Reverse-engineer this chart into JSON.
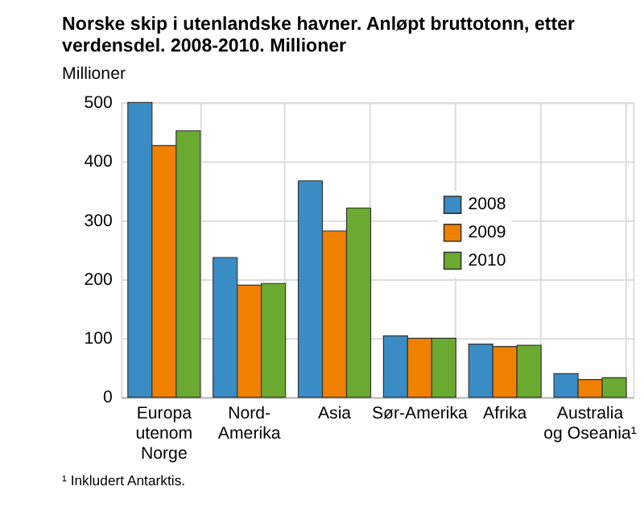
{
  "chart_data": {
    "type": "bar",
    "title": "Norske skip i utenlandske havner. Anløpt bruttotonn, etter verdensdel. 2008-2010. Millioner",
    "ylabel": "Millioner",
    "categories": [
      "Europa utenom Norge",
      "Nord-Amerika",
      "Asia",
      "Sør-Amerika",
      "Afrika",
      "Australia og Oseania¹"
    ],
    "series": [
      {
        "name": "2008",
        "color": "#3a8cc4",
        "values": [
          500,
          237,
          367,
          104,
          90,
          40
        ]
      },
      {
        "name": "2009",
        "color": "#f08000",
        "values": [
          427,
          190,
          282,
          100,
          86,
          30
        ]
      },
      {
        "name": "2010",
        "color": "#6aaa30",
        "values": [
          452,
          193,
          321,
          100,
          88,
          33
        ]
      }
    ],
    "ylim": [
      0,
      500
    ],
    "yticks": [
      0,
      100,
      200,
      300,
      400,
      500
    ],
    "grid": true,
    "legend": "right",
    "annotations": [
      "¹ Inkludert Antarktis."
    ]
  }
}
